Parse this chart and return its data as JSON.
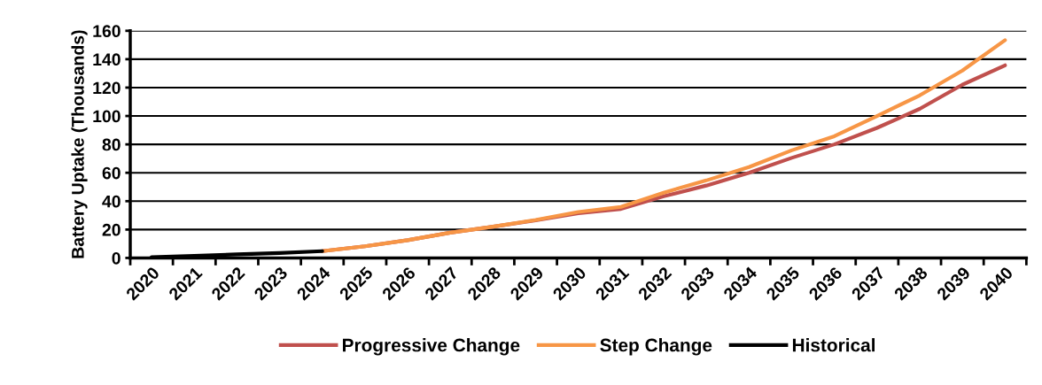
{
  "chart_data": {
    "type": "line",
    "ylabel": "Battery Uptake (Thousands)",
    "categories": [
      "2020",
      "2021",
      "2022",
      "2023",
      "2024",
      "2025",
      "2026",
      "2027",
      "2028",
      "2029",
      "2030",
      "2031",
      "2032",
      "2033",
      "2034",
      "2035",
      "2036",
      "2037",
      "2038",
      "2039",
      "2040"
    ],
    "series": [
      {
        "name": "Progressive Change",
        "color": "#c0504d",
        "values": [
          null,
          null,
          null,
          null,
          4.8,
          8.2,
          12.5,
          17.8,
          22,
          26.5,
          31.5,
          34.5,
          43.4,
          51,
          60,
          70.5,
          80,
          91.6,
          105,
          122,
          135.7
        ]
      },
      {
        "name": "Step Change",
        "color": "#f79646",
        "values": [
          null,
          null,
          null,
          null,
          4.8,
          8.2,
          12.5,
          17.8,
          22,
          26.8,
          32.4,
          36,
          46,
          54.6,
          64,
          75.8,
          85.7,
          100,
          114.5,
          132,
          153.4
        ]
      },
      {
        "name": "Historical",
        "color": "#000000",
        "values": [
          0.5,
          1.5,
          2.5,
          3.5,
          4.8,
          null,
          null,
          null,
          null,
          null,
          null,
          null,
          null,
          null,
          null,
          null,
          null,
          null,
          null,
          null,
          null
        ]
      }
    ],
    "ylim": [
      0,
      160
    ],
    "yticks": [
      0,
      20,
      40,
      60,
      80,
      100,
      120,
      140,
      160
    ],
    "grid": "y",
    "legend": "bottom",
    "marker": "none",
    "line_style": "solid"
  }
}
